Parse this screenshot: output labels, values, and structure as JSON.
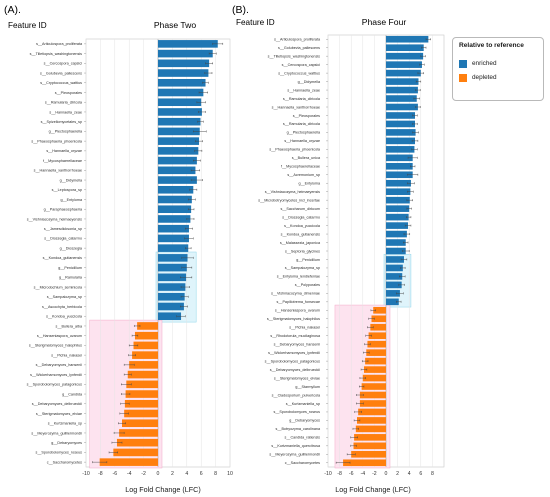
{
  "panels": {
    "left": {
      "letter": "(A).",
      "feature_header": "Feature ID",
      "title": "Phase Two"
    },
    "right": {
      "letter": "(B).",
      "feature_header": "Feature ID",
      "title": "Phase Four"
    }
  },
  "legend": {
    "title": "Relative to reference",
    "items": [
      {
        "label": "enriched",
        "color": "#1f77b4"
      },
      {
        "label": "depleted",
        "color": "#ff7f0e"
      }
    ]
  },
  "colors": {
    "enriched": "#1f77b4",
    "depleted": "#ff7f0e",
    "highlight_blue": "#dff4fb",
    "highlight_pink": "#fde3ef"
  },
  "chart_data": [
    {
      "type": "bar",
      "orientation": "horizontal",
      "title": "Phase Two",
      "xlabel": "Log Fold Change (LFC)",
      "xlim": [
        -10,
        10
      ],
      "xticks": [
        -10,
        -8,
        -6,
        -4,
        -2,
        0,
        2,
        4,
        6,
        8,
        10
      ],
      "categories": [
        "s__Articulospora_proliferata",
        "s__Tilletiopsis_washingtonensis",
        "s__Cercospora_capsici",
        "s__Golubevia_pallescens",
        "s__Cryptococcus_wattius",
        "s__Pleosporales",
        "s__Ramularia_cliricola",
        "s__Hannaella_zeae",
        "s__Spizellomycetales_sp",
        "g__Plectosphaerella",
        "s__Phaeosphaeria_phoenicola",
        "s__Hannaella_oryzae",
        "f__Mycosphaerellaceae",
        "s__Hannaella_xanthorrhoeae",
        "g__Didymella",
        "s__Leptospora_sp",
        "g__Entyloma",
        "g__Paraphaeosphaeria",
        "s__Vishniacozyma_heimaeyensis",
        "s__Jamesdicksonia_sp",
        "s__Dioszegia_catarrno",
        "g__Dioszegia",
        "s__Kondoa_gutianensis",
        "g__Penicillium",
        "g__Ramularia",
        "s__Microdochium_seminicola",
        "s__Sampaiozyma_sp",
        "s__Ascochyta_herbicola",
        "s__Kondoa_yuccicola",
        "s__Bullera_alba",
        "s__Hanseniaspora_uvarum",
        "s__Sterigmatomyces_halophilus",
        "s__Pichia_nakasei",
        "s__Debaryomyces_hansenii",
        "s__Wickerhamomyces_lynferdii",
        "s__Sporobolomyces_patagonicus",
        "g__Candida",
        "s__Debaryomyces_delbrueckii",
        "s__Sterigmatomyces_elviae",
        "s__Kurtzmaniella_sp",
        "s__Meyerozyma_guilliermondii",
        "g__Debaryomyces",
        "s__Sporobolomyces_roseus",
        "c__Saccharomycetes"
      ],
      "values": [
        8.3,
        7.6,
        7.1,
        7.0,
        6.6,
        6.3,
        6.0,
        6.1,
        5.9,
        5.8,
        5.7,
        5.6,
        5.4,
        5.2,
        5.4,
        4.9,
        4.7,
        4.6,
        4.5,
        4.3,
        4.3,
        4.2,
        4.1,
        4.0,
        3.9,
        3.8,
        3.7,
        3.6,
        3.2,
        -2.9,
        -3.2,
        -3.4,
        -3.6,
        -4.0,
        -4.2,
        -4.4,
        -4.5,
        -4.6,
        -4.7,
        -5.0,
        -5.4,
        -5.7,
        -6.2,
        -8.1
      ],
      "errors": [
        0.7,
        0.5,
        0.5,
        0.5,
        0.4,
        0.6,
        0.6,
        0.5,
        0.4,
        0.9,
        0.5,
        0.5,
        0.5,
        0.6,
        0.8,
        0.5,
        0.5,
        0.4,
        0.5,
        0.5,
        0.6,
        0.4,
        0.8,
        0.7,
        0.8,
        0.6,
        0.5,
        0.5,
        0.6,
        0.4,
        0.4,
        0.6,
        0.5,
        0.7,
        0.5,
        0.7,
        0.6,
        0.6,
        0.6,
        0.5,
        0.7,
        0.7,
        0.6,
        1.0
      ]
    },
    {
      "type": "bar",
      "orientation": "horizontal",
      "title": "Phase Four",
      "xlabel": "Log Fold Change (LFC)",
      "xlim": [
        -10,
        10
      ],
      "xticks": [
        -10,
        -8,
        -6,
        -4,
        -2,
        0,
        2,
        4,
        6,
        8
      ],
      "categories": [
        "s__Articulospora_proliferata",
        "s__Golubevia_pallescens",
        "s__Tilletiopsis_washingtonensis",
        "s__Cercospora_capsici",
        "s__Cryptococcus_wattius",
        "g__Didymella",
        "s__Hannaella_zeae",
        "s__Ramularia_cliricola",
        "s__Hannaella_xanthorrhoeae",
        "s__Pleosporales",
        "s__Ramularia_cliricola",
        "g__Plectosphaerella",
        "s__Hannaella_oryzae",
        "s__Phaeosphaeria_phoenicola",
        "s__Bullera_unica",
        "f__Mycosphaerellaceae",
        "s__Acremonium_sp",
        "g__Entyloma",
        "s__Vishniacozyma_heimaeyensis",
        "s__Microbotryomycetes_incl_incertae",
        "s__Saccharum_dirkcum",
        "s__Dioszegia_catarrno",
        "s__Kondoa_yuccicola",
        "s__Kondoa_gutianensis",
        "s__Malassezia_japonica",
        "s__Septoria_glycines",
        "g__Penicillium",
        "s__Sampaiozyma_sp",
        "s__Entyloma_lendiefeniae",
        "s__Polyporales",
        "s__Vishniacozyma_dimennae",
        "s__Papiliotrema_fonsecae",
        "s__Hanseniaspora_uvarum",
        "s__Sterigmatomyces_halophilus",
        "s__Pichia_nakasei",
        "s__Rhodotorula_mucilaginosa",
        "s__Debaryomyces_hansenii",
        "s__Wickerhamomyces_lynferdii",
        "s__Sporobolomyces_patagonicus",
        "s__Debaryomyces_delbrueckii",
        "s__Sterigmatomyces_elviae",
        "g__Starmyllum",
        "s__Cladosporium_pulvericola",
        "s__Kurtzmaniella_sp",
        "s__Sporobolomyces_roseus",
        "g__Debaryomyces",
        "s__Botryozyma_carolinana",
        "s__Candida_ratiensis",
        "s__Kurtzmaniella_quercitrusa",
        "s__Meyerozyma_guilliermondii",
        "c__Saccharomycetes"
      ],
      "values": [
        7.3,
        6.5,
        6.4,
        6.2,
        6.0,
        5.6,
        5.5,
        5.3,
        5.5,
        5.0,
        5.0,
        5.1,
        5.0,
        4.9,
        4.6,
        4.6,
        4.6,
        4.3,
        4.2,
        4.1,
        4.0,
        3.9,
        3.8,
        3.6,
        3.4,
        3.4,
        3.1,
        2.9,
        2.8,
        2.7,
        2.4,
        2.2,
        -2.2,
        -2.5,
        -2.7,
        -3.0,
        -3.2,
        -3.4,
        -3.6,
        -3.8,
        -4.0,
        -4.2,
        -4.5,
        -4.5,
        -4.8,
        -5.0,
        -5.2,
        -5.5,
        -5.6,
        -6.0,
        -7.4
      ],
      "errors": [
        0.4,
        0.4,
        0.4,
        0.4,
        0.5,
        0.4,
        0.4,
        0.5,
        0.4,
        0.4,
        0.4,
        0.5,
        0.5,
        0.5,
        0.8,
        0.4,
        0.9,
        0.6,
        0.5,
        0.5,
        0.4,
        0.4,
        0.5,
        0.5,
        0.4,
        0.6,
        0.5,
        0.4,
        0.5,
        0.5,
        0.6,
        0.4,
        0.4,
        0.5,
        0.5,
        0.5,
        0.5,
        0.5,
        0.5,
        0.5,
        0.5,
        0.4,
        0.6,
        0.6,
        0.6,
        0.5,
        0.5,
        0.6,
        0.5,
        0.7,
        1.2
      ]
    }
  ]
}
